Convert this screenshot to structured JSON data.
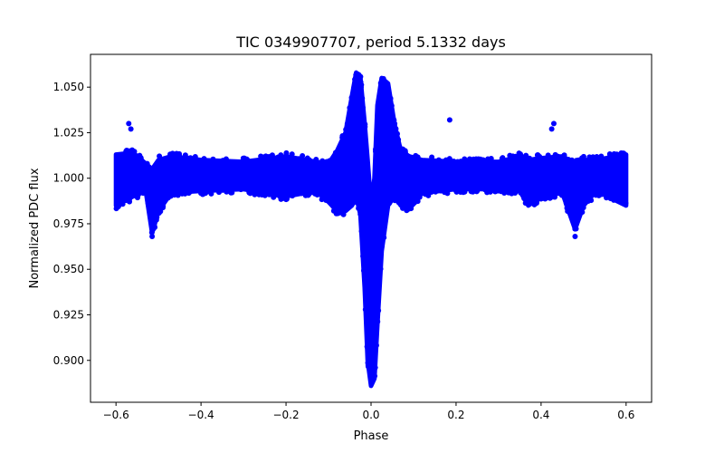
{
  "chart_data": {
    "type": "scatter",
    "title": "TIC 0349907707, period 5.1332 days",
    "xlabel": "Phase",
    "ylabel": "Normalized PDC flux",
    "xlim": [
      -0.66,
      0.66
    ],
    "ylim": [
      0.877,
      1.068
    ],
    "xticks": [
      -0.6,
      -0.4,
      -0.2,
      0.0,
      0.2,
      0.4,
      0.6
    ],
    "xtick_labels": [
      "−0.6",
      "−0.4",
      "−0.2",
      "0.0",
      "0.2",
      "0.4",
      "0.6"
    ],
    "yticks": [
      0.9,
      0.925,
      0.95,
      0.975,
      1.0,
      1.025,
      1.05
    ],
    "ytick_labels": [
      "0.900",
      "0.925",
      "0.950",
      "0.975",
      "1.000",
      "1.025",
      "1.050"
    ],
    "grid": false,
    "marker_color": "#0000ff",
    "envelope_columns": [
      "phase",
      "flux_min",
      "flux_max"
    ],
    "envelope": [
      [
        -0.6,
        0.985,
        1.013
      ],
      [
        -0.56,
        0.99,
        1.014
      ],
      [
        -0.53,
        0.993,
        1.008
      ],
      [
        -0.515,
        0.97,
        1.005
      ],
      [
        -0.5,
        0.982,
        1.01
      ],
      [
        -0.47,
        0.992,
        1.012
      ],
      [
        -0.4,
        0.993,
        1.01
      ],
      [
        -0.3,
        0.994,
        1.009
      ],
      [
        -0.2,
        0.99,
        1.012
      ],
      [
        -0.13,
        0.993,
        1.009
      ],
      [
        -0.1,
        0.987,
        1.008
      ],
      [
        -0.08,
        0.982,
        1.015
      ],
      [
        -0.06,
        0.982,
        1.025
      ],
      [
        -0.045,
        0.985,
        1.045
      ],
      [
        -0.035,
        0.99,
        1.058
      ],
      [
        -0.025,
        0.98,
        1.055
      ],
      [
        -0.015,
        0.94,
        1.03
      ],
      [
        -0.008,
        0.9,
        1.01
      ],
      [
        0.0,
        0.886,
        0.985
      ],
      [
        0.008,
        0.89,
        1.0
      ],
      [
        0.015,
        0.92,
        1.04
      ],
      [
        0.025,
        0.96,
        1.055
      ],
      [
        0.04,
        0.985,
        1.052
      ],
      [
        0.055,
        0.99,
        1.03
      ],
      [
        0.07,
        0.985,
        1.015
      ],
      [
        0.09,
        0.983,
        1.012
      ],
      [
        0.12,
        0.992,
        1.01
      ],
      [
        0.2,
        0.994,
        1.009
      ],
      [
        0.3,
        0.994,
        1.009
      ],
      [
        0.35,
        0.993,
        1.012
      ],
      [
        0.37,
        0.985,
        1.01
      ],
      [
        0.4,
        0.99,
        1.011
      ],
      [
        0.45,
        0.992,
        1.012
      ],
      [
        0.48,
        0.972,
        1.008
      ],
      [
        0.5,
        0.985,
        1.01
      ],
      [
        0.53,
        0.993,
        1.01
      ],
      [
        0.6,
        0.985,
        1.013
      ]
    ],
    "outliers": [
      [
        -0.57,
        1.03
      ],
      [
        -0.565,
        1.027
      ],
      [
        0.185,
        1.032
      ],
      [
        0.43,
        1.03
      ],
      [
        0.425,
        1.027
      ],
      [
        -0.515,
        0.968
      ],
      [
        0.48,
        0.968
      ],
      [
        -0.06,
        0.983
      ],
      [
        0.09,
        0.984
      ]
    ]
  }
}
